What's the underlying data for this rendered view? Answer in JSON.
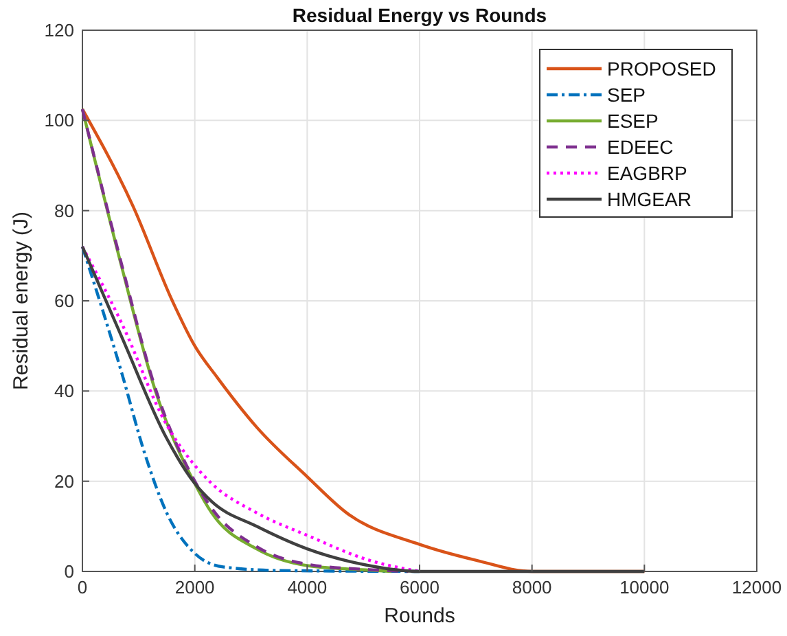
{
  "chart_data": {
    "type": "line",
    "title": "Residual Energy vs Rounds",
    "xlabel": "Rounds",
    "ylabel": "Residual energy (J)",
    "xlim": [
      0,
      12000
    ],
    "xticks": [
      0,
      2000,
      4000,
      6000,
      8000,
      10000,
      12000
    ],
    "ylim": [
      0,
      120
    ],
    "yticks": [
      0,
      20,
      40,
      60,
      80,
      100,
      120
    ],
    "grid": true,
    "legend": "top right",
    "series": [
      {
        "name": "PROPOSED",
        "color": "#d95319",
        "line_style": "solid",
        "x": [
          0,
          900,
          1600,
          2000,
          2400,
          3100,
          4000,
          4700,
          6000,
          7000,
          8000,
          10000
        ],
        "values": [
          102.5,
          81,
          60,
          50,
          43,
          32,
          21,
          13,
          6,
          2.5,
          0,
          0
        ]
      },
      {
        "name": "SEP",
        "color": "#0072bd",
        "line_style": "dashdot",
        "x": [
          0,
          700,
          1100,
          1500,
          2000,
          2500,
          3500,
          6000
        ],
        "values": [
          72,
          44,
          26.5,
          13,
          4,
          1,
          0.2,
          0
        ]
      },
      {
        "name": "ESEP",
        "color": "#77ac30",
        "line_style": "solid",
        "x": [
          0,
          700,
          1300,
          2000,
          2300,
          3100,
          4000,
          5100,
          5500
        ],
        "values": [
          102.5,
          67.5,
          40,
          19.5,
          13,
          5,
          1.3,
          0.3,
          0
        ]
      },
      {
        "name": "EDEEC",
        "color": "#7e2f8e",
        "line_style": "dashed",
        "x": [
          0,
          700,
          1300,
          2000,
          2300,
          3100,
          4000,
          5100,
          5800
        ],
        "values": [
          102.5,
          68,
          40.5,
          20,
          14,
          5.5,
          1.6,
          0.4,
          0
        ]
      },
      {
        "name": "EAGBRP",
        "color": "#ff00ff",
        "line_style": "dotted",
        "x": [
          0,
          700,
          1500,
          2000,
          2300,
          3100,
          4000,
          5100,
          6000
        ],
        "values": [
          72,
          55,
          32.5,
          23.5,
          19.5,
          13,
          8,
          2.5,
          0
        ]
      },
      {
        "name": "HMGEAR",
        "color": "#404040",
        "line_style": "solid",
        "x": [
          0,
          700,
          1500,
          2000,
          2300,
          3100,
          4000,
          5100,
          6000,
          10000
        ],
        "values": [
          72,
          52,
          29.5,
          19.5,
          15.5,
          10,
          5,
          1.3,
          0,
          0
        ]
      }
    ]
  }
}
